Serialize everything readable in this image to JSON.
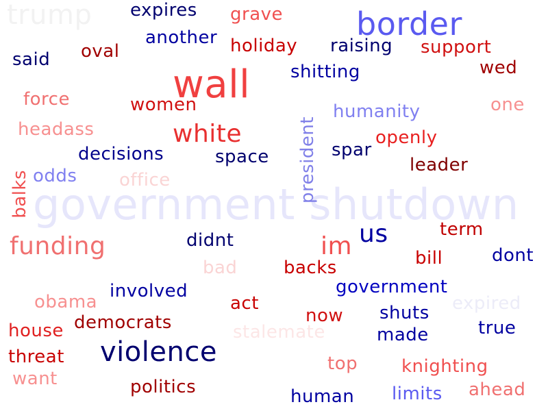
{
  "words": [
    {
      "text": "government shutdown",
      "color": "#e6e6fb"
    },
    {
      "text": "trump",
      "color": "#f2f2f2"
    },
    {
      "text": "border",
      "color": "#5a5af0"
    },
    {
      "text": "wall",
      "color": "#f04040"
    },
    {
      "text": "violence",
      "color": "#00006e"
    },
    {
      "text": "funding",
      "color": "#f07070"
    },
    {
      "text": "white",
      "color": "#e83030"
    },
    {
      "text": "im",
      "color": "#f05050"
    },
    {
      "text": "us",
      "color": "#0000a0"
    },
    {
      "text": "president",
      "color": "#8080e8"
    },
    {
      "text": "expires",
      "color": "#00006e"
    },
    {
      "text": "grave",
      "color": "#f05050"
    },
    {
      "text": "another",
      "color": "#0000a0"
    },
    {
      "text": "holiday",
      "color": "#c80000"
    },
    {
      "text": "raising",
      "color": "#00006e"
    },
    {
      "text": "support",
      "color": "#d01010"
    },
    {
      "text": "said",
      "color": "#00006e"
    },
    {
      "text": "oval",
      "color": "#a00000"
    },
    {
      "text": "wed",
      "color": "#a00000"
    },
    {
      "text": "shitting",
      "color": "#0000a0"
    },
    {
      "text": "force",
      "color": "#f07070"
    },
    {
      "text": "women",
      "color": "#d01010"
    },
    {
      "text": "humanity",
      "color": "#8080f0"
    },
    {
      "text": "one",
      "color": "#f79090"
    },
    {
      "text": "headass",
      "color": "#f79090"
    },
    {
      "text": "openly",
      "color": "#e82020"
    },
    {
      "text": "decisions",
      "color": "#00008b"
    },
    {
      "text": "space",
      "color": "#00006e"
    },
    {
      "text": "spar",
      "color": "#00006e"
    },
    {
      "text": "leader",
      "color": "#800000"
    },
    {
      "text": "odds",
      "color": "#8080f0"
    },
    {
      "text": "office",
      "color": "#fad4d4"
    },
    {
      "text": "balks",
      "color": "#f05050"
    },
    {
      "text": "term",
      "color": "#c00000"
    },
    {
      "text": "didnt",
      "color": "#00006e"
    },
    {
      "text": "dont",
      "color": "#0000a0"
    },
    {
      "text": "bill",
      "color": "#c80000"
    },
    {
      "text": "bad",
      "color": "#fad4d4"
    },
    {
      "text": "backs",
      "color": "#c80000"
    },
    {
      "text": "government",
      "color": "#0000c0"
    },
    {
      "text": "obama",
      "color": "#f79090"
    },
    {
      "text": "involved",
      "color": "#0000a0"
    },
    {
      "text": "act",
      "color": "#c80000"
    },
    {
      "text": "expired",
      "color": "#ececf8"
    },
    {
      "text": "now",
      "color": "#d01010"
    },
    {
      "text": "shuts",
      "color": "#0000a0"
    },
    {
      "text": "house",
      "color": "#e02020"
    },
    {
      "text": "democrats",
      "color": "#a00000"
    },
    {
      "text": "true",
      "color": "#0000a0"
    },
    {
      "text": "stalemate",
      "color": "#fce6e6"
    },
    {
      "text": "made",
      "color": "#0000a0"
    },
    {
      "text": "threat",
      "color": "#c80000"
    },
    {
      "text": "top",
      "color": "#f07070"
    },
    {
      "text": "knighting",
      "color": "#f05050"
    },
    {
      "text": "want",
      "color": "#f79090"
    },
    {
      "text": "politics",
      "color": "#a00000"
    },
    {
      "text": "human",
      "color": "#0000a0"
    },
    {
      "text": "limits",
      "color": "#5a5af0"
    },
    {
      "text": "ahead",
      "color": "#f07070"
    }
  ]
}
